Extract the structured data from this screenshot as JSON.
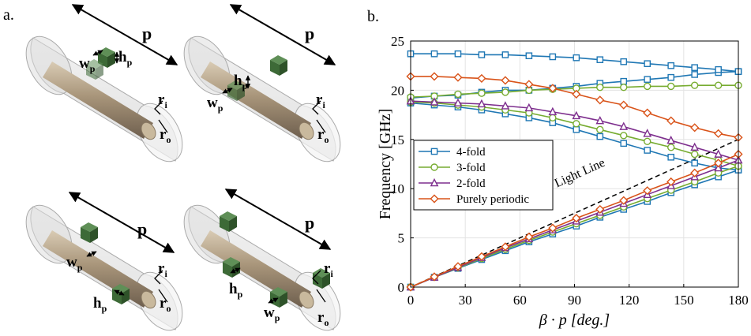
{
  "panel_labels": {
    "a": "a.",
    "b": "b."
  },
  "geometry_labels": {
    "p": "p",
    "w": "w",
    "w_sub": "p",
    "h": "h",
    "h_sub": "p",
    "ri": "r",
    "ri_sub": "i",
    "ro": "r",
    "ro_sub": "o"
  },
  "colors": {
    "4-fold": "#1f77b4",
    "3-fold": "#77ac30",
    "2-fold": "#7e2f8e",
    "Purely periodic": "#d95319",
    "light_line": "#000000"
  },
  "chart_data": {
    "type": "line",
    "xlabel": "β · p [deg.]",
    "ylabel": "Frequency [GHz]",
    "xlim": [
      0,
      180
    ],
    "ylim": [
      0,
      25
    ],
    "xticks": [
      0,
      30,
      60,
      90,
      120,
      150,
      180
    ],
    "yticks": [
      0,
      5,
      10,
      15,
      20,
      25
    ],
    "grid": true,
    "legend_position": "center-left",
    "x": [
      0,
      13,
      26,
      39,
      52,
      65,
      78,
      91,
      104,
      117,
      130,
      143,
      156,
      169,
      180
    ],
    "series": [
      {
        "name": "4-fold",
        "marker": "square",
        "lower": [
          0,
          1.0,
          1.9,
          2.8,
          3.7,
          4.6,
          5.4,
          6.2,
          7.1,
          7.9,
          8.7,
          9.6,
          10.4,
          11.2,
          11.9
        ],
        "upper": [
          18.7,
          18.5,
          18.3,
          18.0,
          17.6,
          17.2,
          16.7,
          16.0,
          15.3,
          14.6,
          13.9,
          13.2,
          12.6,
          12.1,
          11.9
        ],
        "third": [
          19.2,
          19.4,
          19.5,
          19.8,
          20.0,
          20.0,
          20.2,
          20.4,
          20.7,
          20.9,
          21.1,
          21.3,
          21.6,
          21.8,
          21.9
        ],
        "top": [
          23.7,
          23.7,
          23.7,
          23.6,
          23.6,
          23.5,
          23.4,
          23.3,
          23.1,
          22.9,
          22.7,
          22.5,
          22.3,
          22.1,
          21.9
        ]
      },
      {
        "name": "3-fold",
        "marker": "circle",
        "lower": [
          0,
          1.0,
          1.95,
          2.9,
          3.85,
          4.75,
          5.6,
          6.45,
          7.3,
          8.15,
          9.0,
          9.85,
          10.7,
          11.6,
          12.3
        ],
        "upper": [
          18.8,
          18.7,
          18.5,
          18.3,
          18.0,
          17.7,
          17.2,
          16.6,
          16.0,
          15.4,
          14.8,
          14.2,
          13.5,
          12.9,
          12.3
        ],
        "top": [
          19.3,
          19.4,
          19.6,
          19.7,
          19.8,
          20.0,
          20.1,
          20.2,
          20.3,
          20.3,
          20.4,
          20.4,
          20.5,
          20.5,
          20.5
        ]
      },
      {
        "name": "2-fold",
        "marker": "triangle",
        "lower": [
          0,
          1.0,
          2.0,
          3.0,
          4.0,
          4.9,
          5.8,
          6.7,
          7.6,
          8.5,
          9.4,
          10.3,
          11.2,
          12.1,
          12.9
        ],
        "upper": [
          18.9,
          18.8,
          18.7,
          18.6,
          18.4,
          18.2,
          17.8,
          17.4,
          16.9,
          16.3,
          15.6,
          14.9,
          14.2,
          13.5,
          12.9
        ]
      },
      {
        "name": "Purely periodic",
        "marker": "diamond",
        "lower": [
          0,
          1.05,
          2.1,
          3.1,
          4.1,
          5.1,
          6.0,
          7.0,
          7.9,
          8.8,
          9.8,
          10.7,
          11.6,
          12.6,
          13.5
        ],
        "upper": [
          21.4,
          21.4,
          21.3,
          21.2,
          21.0,
          20.6,
          20.2,
          19.6,
          19.0,
          18.5,
          17.7,
          16.9,
          16.2,
          15.6,
          15.2
        ]
      }
    ],
    "light_line": {
      "label": "Light Line",
      "x": [
        0,
        180
      ],
      "y": [
        0,
        15
      ]
    },
    "legend": [
      "4-fold",
      "3-fold",
      "2-fold",
      "Purely periodic"
    ]
  }
}
